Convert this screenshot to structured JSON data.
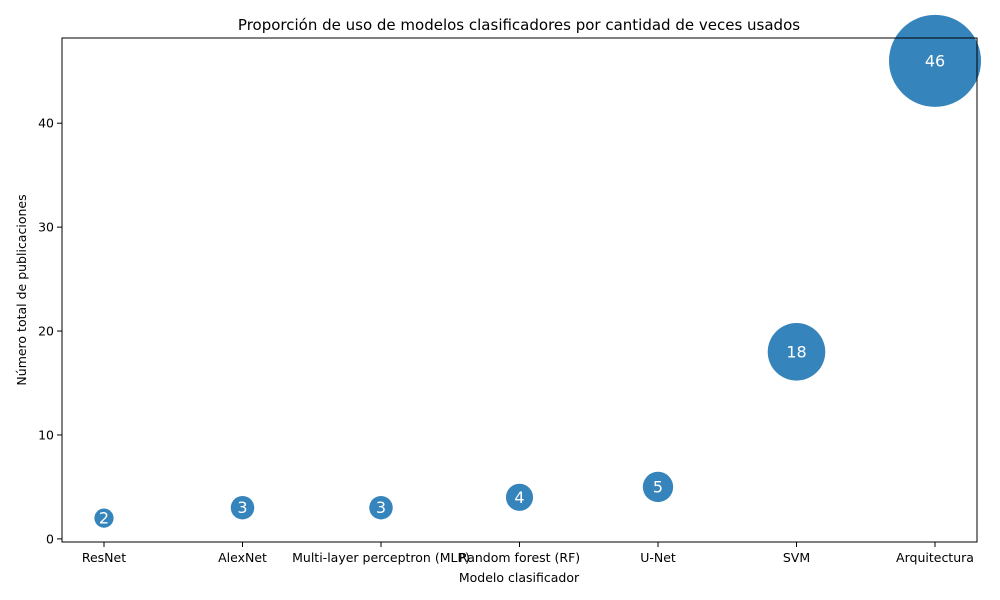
{
  "chart_data": {
    "type": "scatter",
    "title": "Proporción de uso de modelos clasificadores por cantidad de veces usados",
    "xlabel": "Modelo clasificador",
    "ylabel": "Número total de publicaciones",
    "categories": [
      "ResNet",
      "AlexNet",
      "Multi-layer perceptron (MLP)",
      "Random forest (RF)",
      "U-Net",
      "SVM",
      "Arquitectura"
    ],
    "values": [
      2,
      3,
      3,
      4,
      5,
      18,
      46
    ],
    "point_labels": [
      "2",
      "3",
      "3",
      "4",
      "5",
      "18",
      "46"
    ],
    "ylim": [
      -0.3,
      48.2
    ],
    "yticks": [
      0,
      10,
      20,
      30,
      40
    ],
    "ytick_labels": [
      "0",
      "10",
      "20",
      "30",
      "40"
    ],
    "marker_size_encodes": "values",
    "grid": false,
    "legend": "none",
    "colors": {
      "bubble": "#1f77b4",
      "bubble_alpha": 0.9,
      "label_text": "#ffffff"
    }
  }
}
